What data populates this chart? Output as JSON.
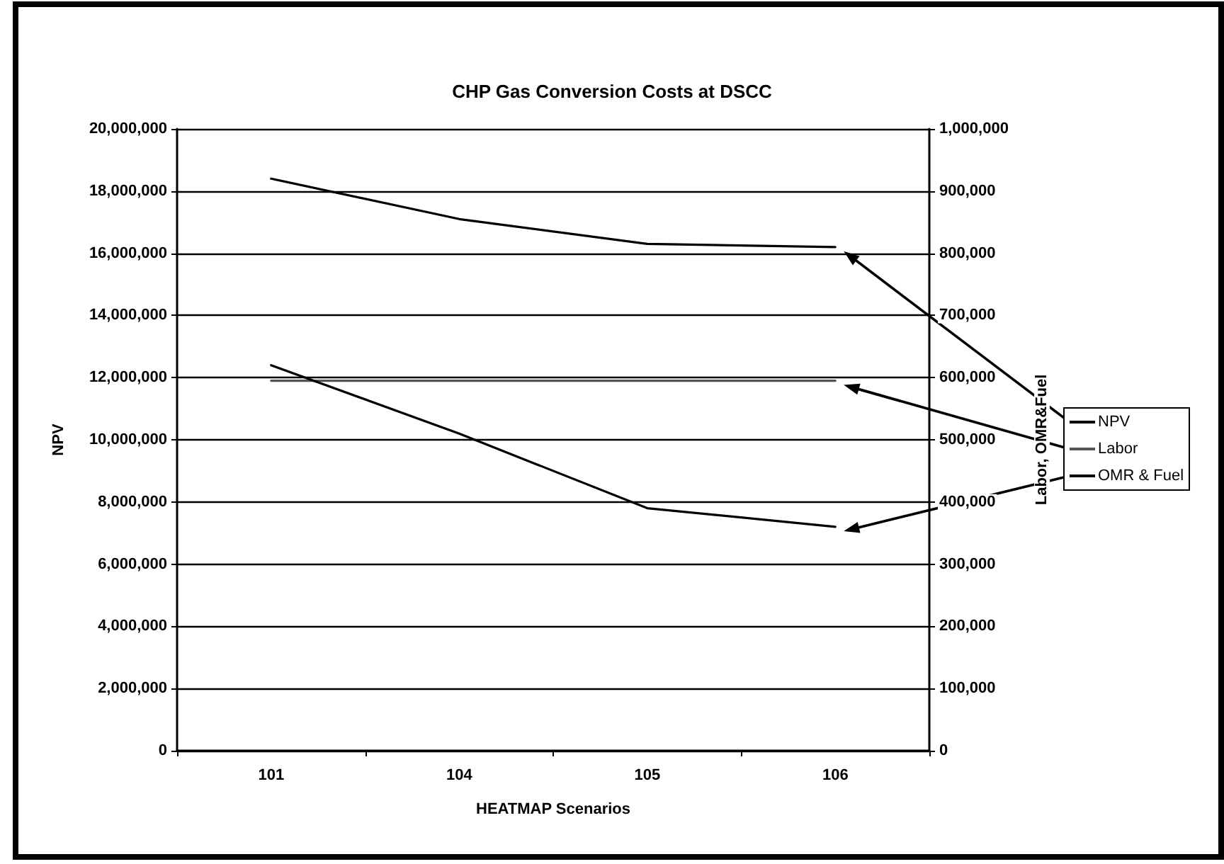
{
  "chart_data": {
    "type": "line",
    "title": "CHP Gas Conversion Costs at DSCC",
    "xlabel": "HEATMAP Scenarios",
    "ylabel": "NPV",
    "y2label": "Labor, OMR&Fuel",
    "categories": [
      "101",
      "104",
      "105",
      "106"
    ],
    "series": [
      {
        "name": "NPV",
        "color": "#000000",
        "values": [
          18400000,
          17100000,
          16300000,
          16200000
        ]
      },
      {
        "name": "Labor",
        "color": "#555555",
        "axis": "y2",
        "values": [
          595000,
          595000,
          595000,
          595000
        ]
      },
      {
        "name": "OMR & Fuel",
        "color": "#000000",
        "axis": "y2",
        "values": [
          620000,
          510000,
          390000,
          360000
        ]
      }
    ],
    "ylim": [
      0,
      20000000
    ],
    "yticks": [
      0,
      {
        "value": 2000000,
        "label": "2,000,000"
      },
      {
        "value": 4000000,
        "label": "4,000,000"
      },
      {
        "value": 6000000,
        "label": "6,000,000"
      },
      {
        "value": 8000000,
        "label": "8,000,000"
      },
      {
        "value": 10000000,
        "label": "10,000,000"
      },
      {
        "value": 12000000,
        "label": "12,000,000"
      },
      {
        "value": 14000000,
        "label": "14,000,000"
      },
      {
        "value": 16000000,
        "label": "16,000,000"
      },
      {
        "value": 18000000,
        "label": "18,000,000"
      },
      {
        "value": 20000000,
        "label": "20,000,000"
      }
    ],
    "y2lim": [
      0,
      1000000
    ],
    "y2ticks": [
      0,
      {
        "value": 100000,
        "label": "100,000"
      },
      {
        "value": 200000,
        "label": "200,000"
      },
      {
        "value": 300000,
        "label": "300,000"
      },
      {
        "value": 400000,
        "label": "400,000"
      },
      {
        "value": 500000,
        "label": "500,000"
      },
      {
        "value": 600000,
        "label": "600,000"
      },
      {
        "value": 700000,
        "label": "700,000"
      },
      {
        "value": 800000,
        "label": "800,000"
      },
      {
        "value": 900000,
        "label": "900,000"
      },
      {
        "value": 1000000,
        "label": "1,000,000"
      }
    ],
    "grid": "y",
    "legend": "right",
    "marker": "none",
    "line_style": "solid"
  }
}
